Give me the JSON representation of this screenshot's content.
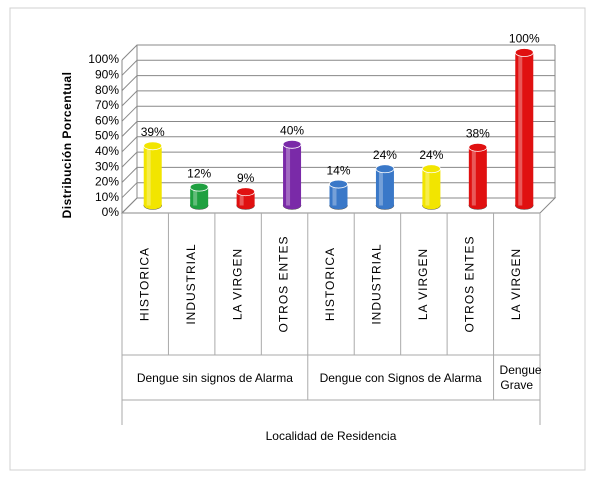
{
  "chart_data": {
    "type": "bar3d",
    "y_label": "Distribución Porcentual",
    "x_label": "Localidad de Residencia",
    "categories": [
      "HISTORICA",
      "INDUSTRIAL",
      "LA VIRGEN",
      "OTROS ENTES",
      "HISTORICA",
      "INDUSTRIAL",
      "LA VIRGEN",
      "OTROS ENTES",
      "LA VIRGEN"
    ],
    "groups": [
      {
        "name": "Dengue sin signos de Alarma",
        "size": 4
      },
      {
        "name": "Dengue con Signos de Alarma",
        "size": 4
      },
      {
        "name": "Dengue Grave",
        "size": 1
      }
    ],
    "values": [
      39,
      12,
      9,
      40,
      14,
      24,
      24,
      38,
      100
    ],
    "value_labels": [
      "39%",
      "12%",
      "9%",
      "40%",
      "14%",
      "24%",
      "24%",
      "38%",
      "100%"
    ],
    "colors": [
      "#f2e500",
      "#1fa040",
      "#e01010",
      "#7a2aa8",
      "#3a78c8",
      "#3a78c8",
      "#f2e500",
      "#e01010",
      "#e01010"
    ],
    "ylim": [
      0,
      100
    ],
    "yticks": [
      {
        "value": 0,
        "label": "0%"
      },
      {
        "value": 10,
        "label": "10%"
      },
      {
        "value": 20,
        "label": "20%"
      },
      {
        "value": 30,
        "label": "30%"
      },
      {
        "value": 40,
        "label": "40%"
      },
      {
        "value": 50,
        "label": "50%"
      },
      {
        "value": 60,
        "label": "60%"
      },
      {
        "value": 70,
        "label": "70%"
      },
      {
        "value": 80,
        "label": "80%"
      },
      {
        "value": 90,
        "label": "90%"
      },
      {
        "value": 100,
        "label": "100%"
      }
    ],
    "grid": true
  }
}
